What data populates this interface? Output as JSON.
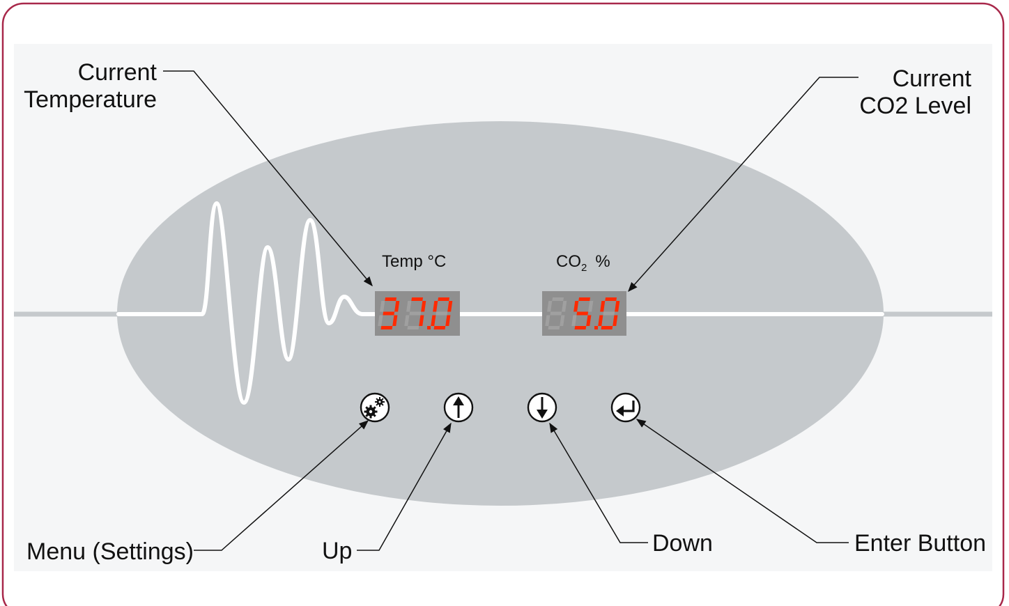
{
  "colors": {
    "frame_border": "#a8284a",
    "panel_ellipse": "#c5c9cc",
    "inner_background": "#f5f6f7",
    "trace": "#ffffff",
    "display_background": "#8f8f8f",
    "segment_lit": "#ff2a00",
    "segment_unlit": "#a0a0a0"
  },
  "panel": {
    "temp_label": "Temp °C",
    "co2_label": "CO",
    "co2_subscript": "2",
    "co2_unit": "%",
    "temp_display": {
      "digits": [
        "3",
        "7",
        "0"
      ],
      "decimal_after_index": 1
    },
    "co2_display": {
      "digits": [
        "8",
        "5",
        "0"
      ],
      "lit": [
        false,
        true,
        true
      ],
      "decimal_after_index": 1
    }
  },
  "buttons": [
    {
      "name": "menu-button",
      "icon": "gears-icon"
    },
    {
      "name": "up-button",
      "icon": "arrow-up-icon"
    },
    {
      "name": "down-button",
      "icon": "arrow-down-icon"
    },
    {
      "name": "enter-button",
      "icon": "enter-return-icon"
    }
  ],
  "callouts": {
    "current_temperature": {
      "line1": "Current",
      "line2": "Temperature"
    },
    "current_co2": {
      "line1": "Current",
      "line2": "CO2 Level"
    },
    "menu": "Menu (Settings)",
    "up": "Up",
    "down": "Down",
    "enter": "Enter Button"
  }
}
